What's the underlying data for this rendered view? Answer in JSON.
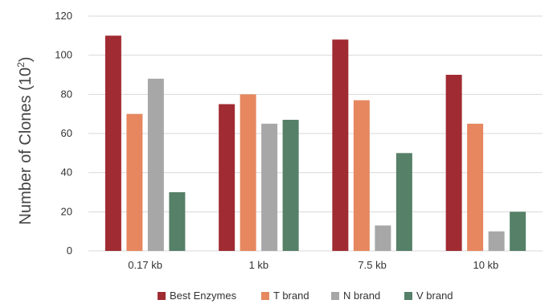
{
  "chart_data": {
    "type": "bar",
    "categories": [
      "0.17 kb",
      "1 kb",
      "7.5 kb",
      "10 kb"
    ],
    "series": [
      {
        "name": "Best Enzymes",
        "color": "#A12B32",
        "values": [
          110,
          75,
          108,
          90
        ]
      },
      {
        "name": "T brand",
        "color": "#E6875F",
        "values": [
          70,
          80,
          77,
          65
        ]
      },
      {
        "name": "N brand",
        "color": "#A7A7A7",
        "values": [
          88,
          65,
          13,
          10
        ]
      },
      {
        "name": "V brand",
        "color": "#568068",
        "values": [
          30,
          67,
          50,
          20
        ]
      }
    ],
    "ylabel_base": "Number of Clones (10",
    "ylabel_sup": "2",
    "ylabel_close": ")",
    "ylim": [
      0,
      120
    ],
    "yticks": [
      "0",
      "20",
      "40",
      "60",
      "80",
      "100",
      "120"
    ],
    "grid": true,
    "legend_position": "bottom"
  }
}
